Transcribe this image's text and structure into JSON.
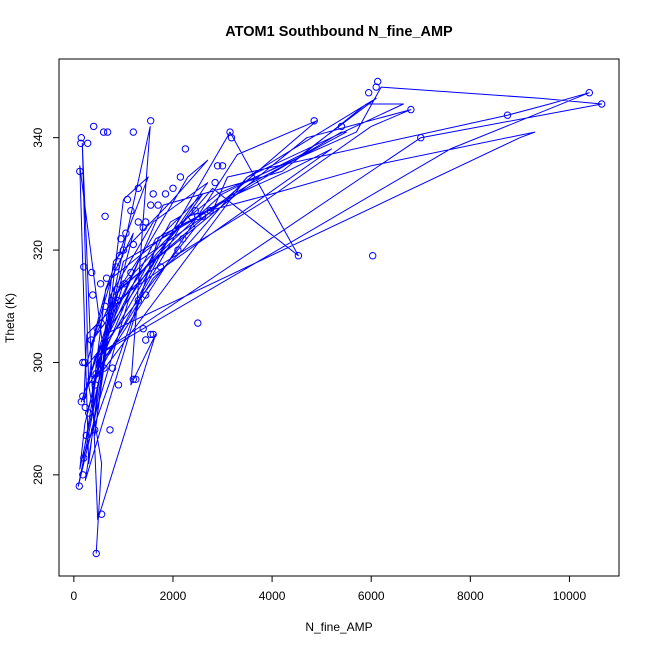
{
  "chart_data": {
    "type": "scatter",
    "mode": "lines+markers",
    "title": "ATOM1 Southbound N_fine_AMP",
    "xlabel": "N_fine_AMP",
    "ylabel": "Theta (K)",
    "xlim": [
      -300,
      11000
    ],
    "ylim": [
      262,
      354
    ],
    "x_ticks": [
      0,
      2000,
      4000,
      6000,
      8000,
      10000
    ],
    "x_tick_labels": [
      "0",
      "2000",
      "4000",
      "6000",
      "8000",
      "10000"
    ],
    "y_ticks": [
      280,
      300,
      320,
      340
    ],
    "y_tick_labels": [
      "280",
      "300",
      "320",
      "340"
    ],
    "grid": false,
    "legend": "none",
    "color": "#0000ff",
    "series": [
      {
        "x": [
          450,
          560,
          300,
          410,
          650,
          1200,
          500,
          620,
          9000,
          9300,
          6000,
          4000,
          2300,
          2450,
          230,
          760,
          2900,
          5700,
          6200,
          9400,
          10650,
          7000,
          600,
          880,
          1300,
          2800,
          3100,
          8750,
          9600,
          10400,
          7600,
          430,
          200,
          260,
          1500,
          3900,
          6000,
          6800,
          4700,
          900,
          150,
          540,
          450,
          1000,
          2100,
          3300,
          4300,
          5200,
          700,
          350,
          380,
          1450,
          2500,
          3600,
          5500,
          5400,
          1000,
          220,
          120,
          700,
          1650,
          2500,
          3000,
          4600,
          6100,
          3500,
          540,
          90,
          470,
          1100,
          1950,
          2150,
          380,
          600,
          3300,
          4900,
          800,
          420,
          630,
          1250,
          2800,
          4530,
          3150,
          650,
          500,
          180,
          1350,
          2200,
          2600,
          1700,
          230,
          560,
          740,
          1600,
          2700,
          700,
          280,
          1540,
          1150,
          1650,
          480,
          170,
          300,
          1600,
          2200,
          3500,
          6650,
          5900,
          4200,
          1800,
          470,
          640,
          1500,
          1000,
          610,
          120,
          300,
          800,
          2000,
          2700,
          2300,
          1500,
          900,
          450,
          380
        ],
        "y": [
          266,
          282,
          296,
          305,
          313,
          323,
          299,
          305,
          340,
          341,
          335,
          330,
          326,
          324,
          299,
          315,
          330,
          341,
          349,
          347,
          346,
          340,
          302,
          310,
          318,
          327,
          333,
          344,
          346,
          348,
          338,
          301,
          293,
          305,
          316,
          329,
          342,
          345,
          340,
          313,
          293,
          303,
          299,
          314,
          324,
          330,
          334,
          338,
          310,
          303,
          304,
          317,
          326,
          332,
          341,
          341,
          318,
          289,
          281,
          305,
          322,
          326,
          330,
          337,
          347,
          333,
          298,
          278,
          292,
          311,
          325,
          326,
          296,
          300,
          337,
          343,
          312,
          287,
          302,
          315,
          331,
          319,
          341,
          303,
          300,
          283,
          312,
          325,
          330,
          322,
          279,
          298,
          312,
          325,
          332,
          306,
          291,
          342,
          296,
          305,
          272,
          339,
          296,
          315,
          320,
          333,
          346,
          346,
          334,
          328,
          301,
          313,
          333,
          329,
          301,
          335,
          282,
          318,
          329,
          336,
          333,
          321,
          313,
          300,
          291
        ],
        "markers": [
          [
            450,
            266
          ],
          [
            560,
            273
          ],
          [
            110,
            278
          ],
          [
            180,
            280
          ],
          [
            200,
            283
          ],
          [
            300,
            291
          ],
          [
            250,
            287
          ],
          [
            420,
            288
          ],
          [
            730,
            288
          ],
          [
            230,
            292
          ],
          [
            150,
            293
          ],
          [
            180,
            294
          ],
          [
            430,
            296
          ],
          [
            1200,
            297
          ],
          [
            1250,
            297
          ],
          [
            900,
            296
          ],
          [
            350,
            297
          ],
          [
            450,
            298
          ],
          [
            610,
            299
          ],
          [
            220,
            300
          ],
          [
            180,
            300
          ],
          [
            780,
            299
          ],
          [
            680,
            302
          ],
          [
            1450,
            304
          ],
          [
            1550,
            305
          ],
          [
            1600,
            305
          ],
          [
            2500,
            307
          ],
          [
            1400,
            306
          ],
          [
            350,
            304
          ],
          [
            470,
            306
          ],
          [
            550,
            307
          ],
          [
            630,
            310
          ],
          [
            760,
            311
          ],
          [
            880,
            311
          ],
          [
            1300,
            311
          ],
          [
            1450,
            312
          ],
          [
            380,
            312
          ],
          [
            540,
            314
          ],
          [
            660,
            315
          ],
          [
            860,
            313
          ],
          [
            1020,
            314
          ],
          [
            1150,
            316
          ],
          [
            360,
            316
          ],
          [
            1750,
            317
          ],
          [
            850,
            317
          ],
          [
            200,
            317
          ],
          [
            920,
            319
          ],
          [
            1000,
            320
          ],
          [
            1200,
            321
          ],
          [
            4530,
            319
          ],
          [
            6030,
            319
          ],
          [
            2100,
            320
          ],
          [
            950,
            322
          ],
          [
            1400,
            324
          ],
          [
            2200,
            322
          ],
          [
            1050,
            323
          ],
          [
            1300,
            325
          ],
          [
            1450,
            325
          ],
          [
            2500,
            326
          ],
          [
            2600,
            326
          ],
          [
            2750,
            327
          ],
          [
            2450,
            327
          ],
          [
            1150,
            327
          ],
          [
            630,
            326
          ],
          [
            1080,
            329
          ],
          [
            1550,
            328
          ],
          [
            1700,
            328
          ],
          [
            1850,
            330
          ],
          [
            2000,
            331
          ],
          [
            1600,
            330
          ],
          [
            2850,
            332
          ],
          [
            1300,
            331
          ],
          [
            2150,
            333
          ],
          [
            2900,
            335
          ],
          [
            3000,
            335
          ],
          [
            2250,
            338
          ],
          [
            3180,
            340
          ],
          [
            3150,
            341
          ],
          [
            120,
            334
          ],
          [
            140,
            339
          ],
          [
            150,
            340
          ],
          [
            280,
            339
          ],
          [
            400,
            342
          ],
          [
            600,
            341
          ],
          [
            680,
            341
          ],
          [
            1200,
            341
          ],
          [
            1550,
            343
          ],
          [
            4850,
            343
          ],
          [
            5400,
            342
          ],
          [
            6800,
            345
          ],
          [
            5950,
            348
          ],
          [
            6100,
            349
          ],
          [
            6130,
            350
          ],
          [
            7000,
            340
          ],
          [
            8750,
            344
          ],
          [
            10400,
            348
          ],
          [
            10650,
            346
          ]
        ]
      }
    ]
  }
}
